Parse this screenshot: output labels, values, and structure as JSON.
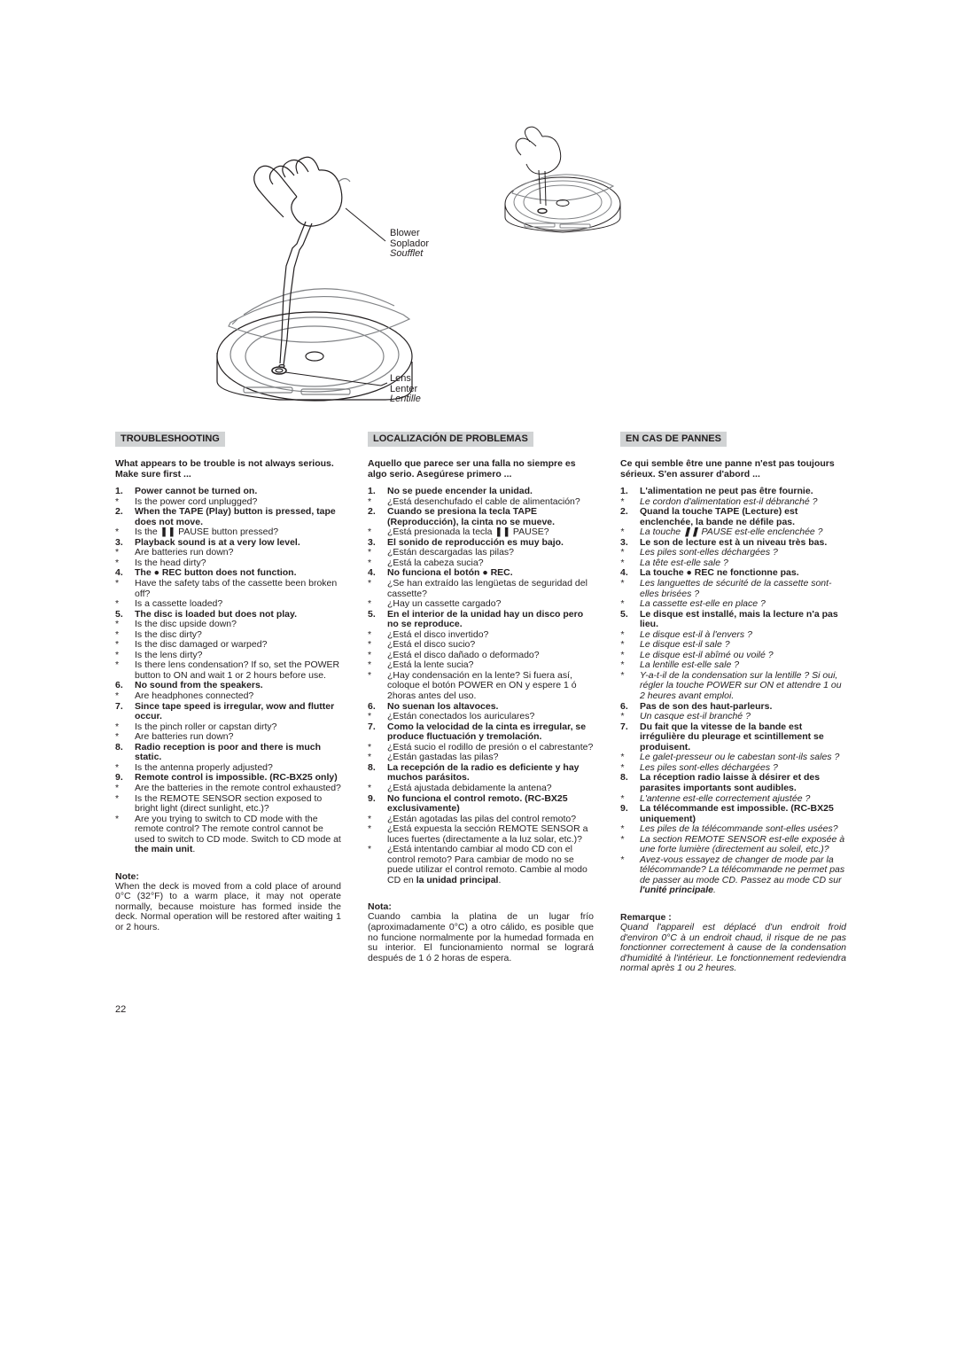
{
  "page_number": "22",
  "diagram": {
    "blower": {
      "en": "Blower",
      "es": "Soplador",
      "fr": "Soufflet"
    },
    "lens": {
      "en": "Lens",
      "es": "Lenter",
      "fr": "Lentille"
    }
  },
  "colors": {
    "title_bg": "#d1d3d4",
    "text": "#231f20",
    "line": "#231f20",
    "line_light": "#808285"
  },
  "cols": {
    "en": {
      "title": "TROUBLESHOOTING",
      "intro": "What appears to be trouble is not always serious. Make sure first ...",
      "items": [
        {
          "q": "Power cannot be turned on.",
          "a": [
            "Is the power cord unplugged?"
          ]
        },
        {
          "q": "When the TAPE (Play) button is pressed, tape does not move.",
          "a": [
            "Is the ❚❚ PAUSE button pressed?"
          ]
        },
        {
          "q": "Playback sound is at a very low level.",
          "a": [
            "Are batteries run down?",
            "Is the head dirty?"
          ]
        },
        {
          "q": "The ● REC button does not function.",
          "a": [
            "Have the safety tabs of the cassette been broken off?",
            "Is a cassette loaded?"
          ]
        },
        {
          "q": "The disc is loaded but does not play.",
          "a": [
            "Is the disc upside down?",
            "Is the disc dirty?",
            "Is the disc damaged or warped?",
            "Is the lens dirty?",
            "Is there lens condensation? If so, set the POWER button to ON and wait 1 or 2 hours before use."
          ]
        },
        {
          "q": "No sound from the speakers.",
          "a": [
            "Are headphones connected?"
          ]
        },
        {
          "q": "Since tape speed is irregular, wow and flutter occur.",
          "a": [
            "Is the pinch roller or capstan dirty?",
            "Are batteries run down?"
          ]
        },
        {
          "q": "Radio reception is poor and there is much static.",
          "a": [
            "Is the antenna properly adjusted?"
          ]
        },
        {
          "q": "Remote control is impossible. (RC-BX25 only)",
          "a": [
            "Are the batteries in the remote control exhausted?",
            "Is the REMOTE SENSOR section exposed to bright light (direct sunlight, etc.)?",
            "Are you trying to switch to CD mode with the remote control? The remote control cannot be used to switch to CD mode. Switch to CD mode at <b>the main unit</b>."
          ]
        }
      ],
      "note_head": "Note:",
      "note_body": "When the deck is moved from a cold place of around 0°C (32°F) to a warm place, it may not operate normally, because moisture has formed inside the deck. Normal operation will be restored after waiting 1 or 2 hours."
    },
    "es": {
      "title": "LOCALIZACIÓN DE PROBLEMAS",
      "intro": "Aquello que parece ser una falla no siempre es algo serio. Asegúrese primero ...",
      "items": [
        {
          "q": "No se puede encender la unidad.",
          "a": [
            "¿Está desenchufado el cable de alimentación?"
          ]
        },
        {
          "q": "Cuando se presiona la tecla TAPE (Reproducción), la cinta no se mueve.",
          "a": [
            "¿Está presionada la tecla ❚❚ PAUSE?"
          ]
        },
        {
          "q": "El sonido de reproducción es muy bajo.",
          "a": [
            "¿Están descargadas las pilas?",
            "¿Está la cabeza sucia?"
          ]
        },
        {
          "q": "No funciona el botón ● REC.",
          "a": [
            "¿Se han extraído las lengüetas de seguridad del cassette?",
            "¿Hay un cassette cargado?"
          ]
        },
        {
          "q": "En el interior de la unidad hay un disco pero no se reproduce.",
          "a": [
            "¿Está el disco invertido?",
            "¿Está el disco sucio?",
            "¿Está el disco dañado o deformado?",
            "¿Está la lente sucia?",
            "¿Hay condensación en la lente? Si fuera así, coloque el botón POWER en ON y espere 1 ó 2horas antes del uso."
          ]
        },
        {
          "q": "No suenan los altavoces.",
          "a": [
            "¿Están conectados los auriculares?"
          ]
        },
        {
          "q": "Como la velocidad de la cinta es irregular, se produce fluctuación y tremolación.",
          "a": [
            "¿Está sucio el rodillo de presión o el cabrestante?",
            "¿Están gastadas las pilas?"
          ]
        },
        {
          "q": "La recepción de la radio es deficiente y hay muchos parásitos.",
          "a": [
            "¿Está ajustada debidamente la antena?"
          ]
        },
        {
          "q": "No funciona el control remoto. (RC-BX25 exclusivamente)",
          "a": [
            "¿Están agotadas las pilas del control remoto?",
            "¿Está expuesta la sección REMOTE SENSOR a luces fuertes (directamente a la luz solar, etc.)?",
            "¿Está intentando cambiar al modo CD con el control remoto? Para cambiar de modo no se puede utilizar el control remoto. Cambie al modo CD en <b>la unidad principal</b>."
          ]
        }
      ],
      "note_head": "Nota:",
      "note_body": "Cuando cambia la platina de un lugar frío (aproximadamente 0°C) a otro cálido, es posible que no funcione normalmente por la humedad formada en su interior. El funcionamiento normal se logrará después de 1 ó 2 horas de espera."
    },
    "fr": {
      "title": "EN CAS DE PANNES",
      "intro": "Ce qui semble être une panne n'est pas toujours sérieux. S'en assurer d'abord ...",
      "items": [
        {
          "q": "L'alimentation ne peut pas être fournie.",
          "a": [
            "Le cordon d'alimentation est-il débranché ?"
          ]
        },
        {
          "q": "Quand la touche TAPE (Lecture) est enclenchée, la bande ne défile pas.",
          "a": [
            "La touche ❚❚ PAUSE est-elle enclenchée ?"
          ]
        },
        {
          "q": "Le son de lecture est à un niveau très bas.",
          "a": [
            "Les piles sont-elles déchargées ?",
            "La tête est-elle sale ?"
          ]
        },
        {
          "q": "La touche ● REC ne fonctionne pas.",
          "a": [
            "Les languettes de sécurité de la cassette sont-elles brisées ?",
            "La cassette est-elle en place ?"
          ]
        },
        {
          "q": "Le disque est installé, mais la lecture n'a pas lieu.",
          "a": [
            "Le disque est-il à l'envers ?",
            "Le disque est-il sale ?",
            "Le disque est-il abîmé ou voilé ?",
            "La lentille est-elle sale ?",
            "Y-a-t-il de la condensation sur la lentille ? Si oui, régler la touche POWER sur ON et attendre 1 ou 2 heures avant emploi."
          ]
        },
        {
          "q": "Pas de son des haut-parleurs.",
          "a": [
            "Un casque est-il branché ?"
          ]
        },
        {
          "q": "Du fait que la vitesse de la bande est irrégulière du pleurage et scintillement se produisent.",
          "a": [
            "Le galet-presseur ou le cabestan sont-ils sales ?",
            "Les piles sont-elles déchargées ?"
          ]
        },
        {
          "q": "La réception radio laisse à désirer et des parasites importants sont audibles.",
          "a": [
            "L'antenne est-elle correctement ajustée ?"
          ]
        },
        {
          "q": "La télécommande est impossible. (RC-BX25 uniquement)",
          "a": [
            "Les piles de la télécommande sont-elles usées?",
            "La section REMOTE SENSOR est-elle exposée à une forte lumière (directement au soleil, etc.)?",
            "Avez-vous essayez de changer de mode par la télécommande? La télécommande ne permet pas de passer au mode CD. Passez au mode CD sur <b>l'unité principale</b>."
          ]
        }
      ],
      "note_head": "Remarque :",
      "note_body": "Quand l'appareil est déplacé d'un endroit froid d'environ 0°C à un endroit chaud, il risque de ne pas fonctionner correctement à cause de la condensation d'humidité à l'intérieur. Le fonctionnement redeviendra normal après 1 ou 2 heures."
    }
  }
}
